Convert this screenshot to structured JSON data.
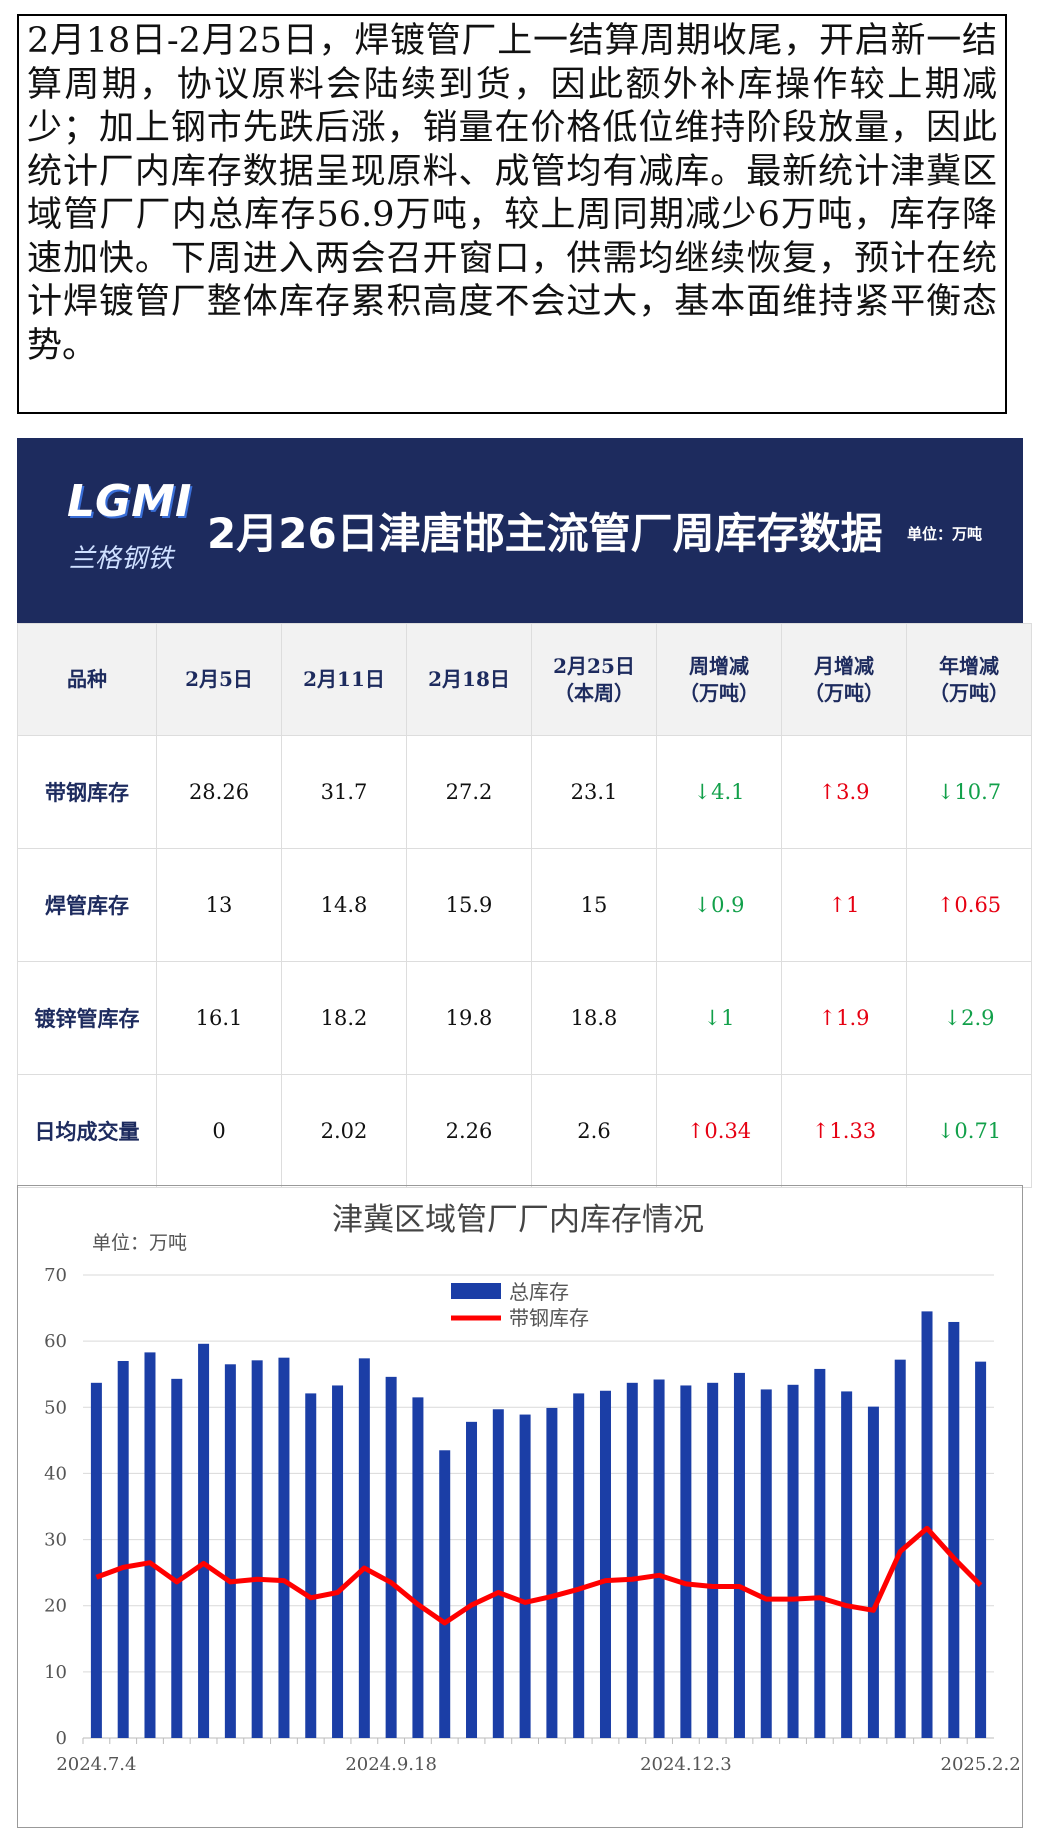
{
  "text": "2月18日-2月25日，焊镀管厂上一结算周期收尾，开启新一结算周期，协议原料会陆续到货，因此额外补库操作较上期减少；加上钢市先跌后涨，销量在价格低位维持阶段放量，因此统计厂内库存数据呈现原料、成管均有减库。最新统计津冀区域管厂厂内总库存56.9万吨，较上周同期减少6万吨，库存降速加快。下周进入两会召开窗口，供需均继续恢复，预计在统计焊镀管厂整体库存累积高度不会过大，基本面维持紧平衡态势。",
  "header": {
    "logo": "LGMI",
    "logo_sub": "兰格钢铁",
    "title": "2月26日津唐邯主流管厂周库存数据",
    "unit": "单位：万吨"
  },
  "table": {
    "columns": [
      [
        "品种"
      ],
      [
        "2月5日"
      ],
      [
        "2月11日"
      ],
      [
        "2月18日"
      ],
      [
        "2月25日",
        "（本周）"
      ],
      [
        "周增减",
        "（万吨）"
      ],
      [
        "月增减",
        "（万吨）"
      ],
      [
        "年增减",
        "（万吨）"
      ]
    ],
    "rows": [
      [
        "带钢库存",
        "28.26",
        "31.7",
        "27.2",
        "23.1",
        "↓4.1",
        "↑3.9",
        "↓10.7"
      ],
      [
        "焊管库存",
        "13",
        "14.8",
        "15.9",
        "15",
        "↓0.9",
        "↑1",
        "↑0.65"
      ],
      [
        "镀锌管库存",
        "16.1",
        "18.2",
        "19.8",
        "18.8",
        "↓1",
        "↑1.9",
        "↓2.9"
      ],
      [
        "日均成交量",
        "0",
        "2.02",
        "2.26",
        "2.6",
        "↑0.34",
        "↑1.33",
        "↓0.71"
      ]
    ]
  },
  "chart_data": {
    "type": "bar",
    "title": "津冀区域管厂厂内库存情况",
    "unit": "单位：万吨",
    "categories": [
      "2024.7.4",
      null,
      null,
      null,
      null,
      null,
      null,
      null,
      null,
      null,
      null,
      "2024.9.18",
      null,
      null,
      null,
      null,
      null,
      null,
      null,
      null,
      null,
      null,
      "2024.12.3",
      null,
      null,
      null,
      null,
      null,
      null,
      null,
      null,
      null,
      null,
      "2025.2.2"
    ],
    "series": [
      {
        "name": "总库存",
        "type": "bar",
        "color": "#1b3ea6",
        "values": [
          53.7,
          57,
          58.3,
          54.3,
          59.6,
          56.5,
          57.1,
          57.5,
          52.1,
          53.3,
          57.4,
          54.6,
          51.5,
          43.5,
          47.8,
          49.7,
          48.9,
          49.9,
          52.1,
          52.5,
          53.7,
          54.2,
          53.3,
          53.7,
          55.2,
          52.7,
          53.4,
          55.8,
          52.4,
          50.1,
          57.2,
          64.5,
          62.9,
          56.9
        ]
      },
      {
        "name": "带钢库存",
        "type": "line",
        "color": "#ff0000",
        "values": [
          24.3,
          25.8,
          26.5,
          23.6,
          26.4,
          23.6,
          24.0,
          23.8,
          21.2,
          22.0,
          25.7,
          23.5,
          20.2,
          17.4,
          20.1,
          22.0,
          20.5,
          21.4,
          22.5,
          23.8,
          24.0,
          24.6,
          23.3,
          22.9,
          22.9,
          21.0,
          21.0,
          21.2,
          20.0,
          19.3,
          28.2,
          31.7,
          27.2,
          23.1
        ]
      }
    ],
    "ylim": [
      0,
      70
    ],
    "yticks": [
      0,
      10,
      20,
      30,
      40,
      50,
      60,
      70
    ],
    "grid": true
  }
}
